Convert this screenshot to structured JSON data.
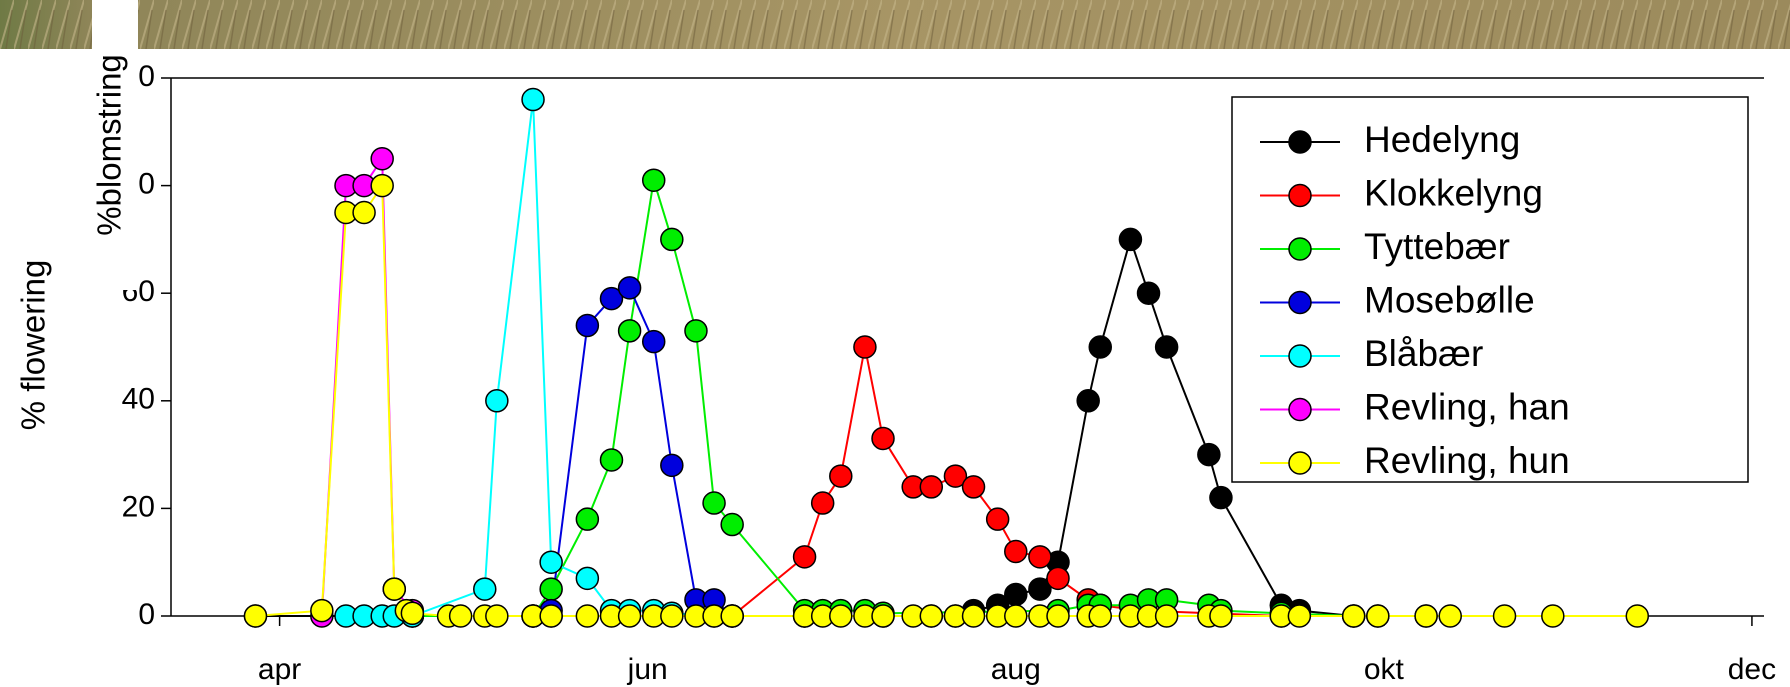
{
  "chart_data": {
    "type": "line",
    "ylabel": "% flowering",
    "ylabel2": "%blomstring",
    "xlim": [
      73,
      337
    ],
    "xticks": [
      {
        "value": 91,
        "label": "apr"
      },
      {
        "value": 152,
        "label": "jun"
      },
      {
        "value": 213,
        "label": "aug"
      },
      {
        "value": 274,
        "label": "okt"
      },
      {
        "value": 335,
        "label": "dec"
      }
    ],
    "ylim": [
      0,
      100
    ],
    "yticks": [
      0,
      20,
      40,
      60,
      80,
      100
    ],
    "legend": "upper right",
    "series": [
      {
        "name": "Hedelyng",
        "color": "#000000",
        "x": [
          87,
          113,
          133,
          136,
          166,
          178,
          191,
          199,
          203,
          206,
          210,
          213,
          217,
          220,
          225,
          227,
          232,
          235,
          238,
          245,
          247,
          257,
          260,
          269,
          273,
          281
        ],
        "values": [
          0,
          0,
          0,
          0,
          0,
          0,
          0,
          0,
          0,
          1,
          2,
          4,
          5,
          10,
          40,
          50,
          70,
          60,
          50,
          30,
          22,
          2,
          1,
          0,
          0,
          0
        ]
      },
      {
        "name": "Klokkelyng",
        "color": "#ff0000",
        "x": [
          166,
          178,
          181,
          184,
          188,
          191,
          196,
          199,
          203,
          206,
          210,
          213,
          217,
          220,
          225,
          227,
          234,
          257
        ],
        "values": [
          0,
          11,
          21,
          26,
          50,
          33,
          24,
          24,
          26,
          24,
          18,
          12,
          11,
          7,
          3,
          2,
          1,
          0
        ]
      },
      {
        "name": "Tyttebær",
        "color": "#00ee00",
        "x": [
          113,
          133,
          136,
          142,
          146,
          149,
          153,
          156,
          160,
          163,
          166,
          178,
          181,
          184,
          188,
          191,
          220,
          225,
          227,
          232,
          235,
          238,
          245,
          247,
          257,
          269
        ],
        "values": [
          0,
          0,
          5,
          18,
          29,
          53,
          81,
          70,
          53,
          21,
          17,
          1,
          1,
          1,
          1,
          0.5,
          1,
          2,
          2,
          2,
          3,
          3,
          2,
          1,
          0.5,
          0
        ]
      },
      {
        "name": "Mosebølle",
        "color": "#0000dd",
        "x": [
          133,
          136,
          142,
          146,
          149,
          153,
          156,
          160,
          163,
          166,
          178
        ],
        "values": [
          0,
          1,
          54,
          59,
          61,
          51,
          28,
          3,
          3,
          0,
          0
        ]
      },
      {
        "name": "Blåbær",
        "color": "#00ffff",
        "x": [
          102,
          105,
          108,
          110,
          113,
          125,
          127,
          133,
          136,
          142,
          146,
          149,
          153,
          156,
          163
        ],
        "values": [
          0,
          0,
          0,
          0,
          0,
          5,
          40,
          96,
          10,
          7,
          1,
          1,
          1,
          0.5,
          0
        ]
      },
      {
        "name": "Revling, han",
        "color": "#ff00ff",
        "x": [
          98,
          102,
          105,
          108,
          110,
          113
        ],
        "values": [
          0,
          80,
          80,
          85,
          5,
          1
        ]
      },
      {
        "name": "Revling, hun",
        "color": "#ffff00",
        "x": [
          87,
          98,
          102,
          105,
          108,
          110,
          112,
          113,
          119,
          121,
          125,
          127,
          133,
          136,
          142,
          146,
          149,
          153,
          156,
          160,
          163,
          166,
          178,
          181,
          184,
          188,
          191,
          196,
          199,
          203,
          206,
          210,
          213,
          217,
          220,
          225,
          227,
          232,
          235,
          238,
          245,
          247,
          257,
          260,
          269,
          273,
          281,
          285,
          294,
          302,
          316
        ],
        "values": [
          0,
          1,
          75,
          75,
          80,
          5,
          1,
          0.5,
          0,
          0,
          0,
          0,
          0,
          0,
          0,
          0,
          0,
          0,
          0,
          0,
          0,
          0,
          0,
          0,
          0,
          0,
          0,
          0,
          0,
          0,
          0,
          0,
          0,
          0,
          0,
          0,
          0,
          0,
          0,
          0,
          0,
          0,
          0,
          0,
          0,
          0,
          0,
          0,
          0,
          0,
          0
        ]
      }
    ]
  }
}
